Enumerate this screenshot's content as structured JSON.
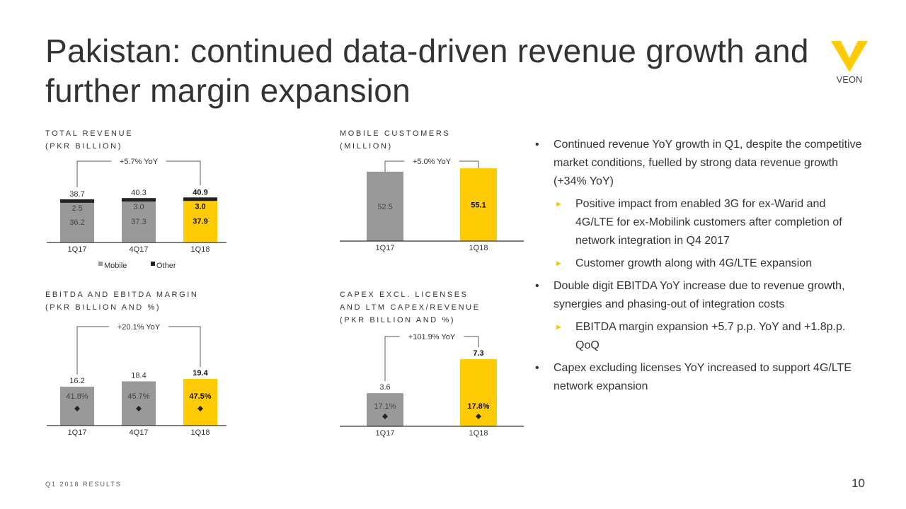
{
  "title": "Pakistan: continued data-driven revenue growth and further margin expansion",
  "logo": {
    "text": "VEON",
    "color": "#FFCB05"
  },
  "colors": {
    "accent": "#FFCB05",
    "gray": "#999999",
    "dark": "#222222"
  },
  "sections": {
    "revenue": [
      "TOTAL REVENUE",
      "(PKR BILLION)"
    ],
    "customers": [
      "MOBILE CUSTOMERS",
      "(MILLION)"
    ],
    "ebitda": [
      "EBITDA AND EBITDA MARGIN",
      "(PKR BILLION AND %)"
    ],
    "capex": [
      "CAPEX EXCL. LICENSES",
      "AND LTM CAPEX/REVENUE",
      "(PKR BILLION AND %)"
    ]
  },
  "chart_data": [
    {
      "id": "revenue",
      "type": "bar",
      "stacked": true,
      "title": "TOTAL REVENUE (PKR BILLION)",
      "categories": [
        "1Q17",
        "4Q17",
        "1Q18"
      ],
      "series": [
        {
          "name": "Mobile",
          "values": [
            36.2,
            37.3,
            37.9
          ],
          "labels": [
            "36.2",
            "37.3",
            "37.9"
          ]
        },
        {
          "name": "Other",
          "values": [
            2.5,
            3.0,
            3.0
          ],
          "labels": [
            "2.5",
            "3.0",
            "3.0"
          ]
        }
      ],
      "totals": [
        "38.7",
        "40.3",
        "40.9"
      ],
      "annotation": "+5.7% YoY",
      "legend": [
        "Mobile",
        "Other"
      ],
      "legend_position": "bottom"
    },
    {
      "id": "customers",
      "type": "bar",
      "title": "MOBILE CUSTOMERS (MILLION)",
      "categories": [
        "1Q17",
        "1Q18"
      ],
      "values": [
        52.5,
        55.1
      ],
      "labels": [
        "52.5",
        "55.1"
      ],
      "annotation": "+5.0% YoY"
    },
    {
      "id": "ebitda",
      "type": "bar",
      "title": "EBITDA AND EBITDA MARGIN (PKR BILLION AND %)",
      "categories": [
        "1Q17",
        "4Q17",
        "1Q18"
      ],
      "values": [
        16.2,
        18.4,
        19.4
      ],
      "labels": [
        "16.2",
        "18.4",
        "19.4"
      ],
      "margin": [
        41.8,
        45.7,
        47.5
      ],
      "margin_labels": [
        "41.8%",
        "45.7%",
        "47.5%"
      ],
      "annotation": "+20.1% YoY"
    },
    {
      "id": "capex",
      "type": "bar",
      "title": "CAPEX EXCL. LICENSES AND LTM CAPEX/REVENUE (PKR BILLION AND %)",
      "categories": [
        "1Q17",
        "1Q18"
      ],
      "values": [
        3.6,
        7.3
      ],
      "labels": [
        "3.6",
        "7.3"
      ],
      "margin": [
        17.1,
        17.8
      ],
      "margin_labels": [
        "17.1%",
        "17.8%"
      ],
      "annotation": "+101.9% YoY"
    }
  ],
  "bullets": [
    {
      "level": 1,
      "text": "Continued revenue YoY growth in Q1, despite the competitive market conditions, fuelled by strong data revenue growth (+34% YoY)"
    },
    {
      "level": 2,
      "text": "Positive impact from enabled 3G for ex-Warid and 4G/LTE for ex-Mobilink customers after completion of network integration in Q4 2017"
    },
    {
      "level": 2,
      "text": "Customer growth along with 4G/LTE expansion"
    },
    {
      "level": 1,
      "text": "Double digit EBITDA YoY increase due to revenue growth, synergies and phasing-out of integration costs"
    },
    {
      "level": 2,
      "text": "EBITDA margin expansion +5.7 p.p. YoY and +1.8p.p. QoQ"
    },
    {
      "level": 1,
      "text": "Capex excluding licenses YoY increased to support 4G/LTE network expansion"
    }
  ],
  "markers": {
    "level1": "•",
    "level2": "►"
  },
  "footer": "Q1 2018 RESULTS",
  "page_number": "10"
}
